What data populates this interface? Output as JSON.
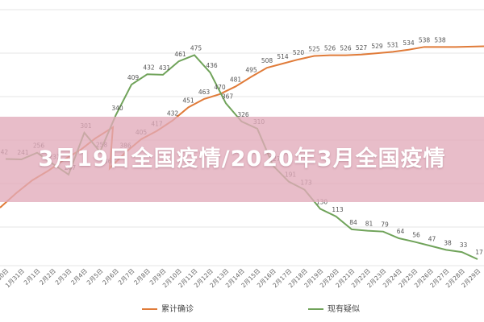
{
  "banner": {
    "title": "3月19日全国疫情/2020年3月全国疫情"
  },
  "chart_data": {
    "type": "line",
    "categories": [
      "1月30日",
      "1月31日",
      "2月1日",
      "2月2日",
      "2月3日",
      "2月4日",
      "2月5日",
      "2月6日",
      "2月7日",
      "2月8日",
      "2月9日",
      "2月10日",
      "2月11日",
      "2月12日",
      "2月13日",
      "2月14日",
      "2月15日",
      "2月16日",
      "2月17日",
      "2月18日",
      "2月19日",
      "2月20日",
      "2月21日",
      "2月22日",
      "2月23日",
      "2月24日",
      "2月25日",
      "2月26日",
      "2月27日",
      "2月28日",
      "2月29日"
    ],
    "series": [
      {
        "name": "累计确诊",
        "color": "#e07b39",
        "values": [
          null,
          null,
          null,
          null,
          null,
          null,
          null,
          null,
          null,
          null,
          null,
          null,
          null,
          null,
          null,
          null,
          null,
          null,
          null,
          null,
          null,
          null,
          null,
          null,
          null,
          null,
          null,
          null,
          null,
          null,
          null
        ],
        "labels": [
          null,
          null,
          null,
          null,
          null,
          null,
          363,
          386,
          405,
          417,
          432,
          451,
          463,
          470,
          481,
          495,
          508,
          514,
          520,
          525,
          526,
          526,
          527,
          529,
          531,
          534,
          538,
          538,
          null,
          null,
          null
        ]
      },
      {
        "name": "现有疑似",
        "color": "#70a35a",
        "values": [
          null,
          null,
          null,
          null,
          null,
          null,
          null,
          null,
          null,
          null,
          null,
          null,
          null,
          null,
          null,
          null,
          null,
          null,
          null,
          null,
          null,
          null,
          null,
          null,
          null,
          null,
          null,
          null,
          null,
          null,
          null
        ],
        "labels": [
          242,
          241,
          256,
          231,
          207,
          301,
          258,
          340,
          409,
          432,
          431,
          461,
          475,
          436,
          367,
          326,
          310,
          227,
          191,
          173,
          130,
          113,
          84,
          81,
          79,
          64,
          56,
          47,
          38,
          33,
          17
        ]
      }
    ],
    "xlabel": "",
    "ylabel": "",
    "grid": true,
    "legend": "bottom"
  }
}
